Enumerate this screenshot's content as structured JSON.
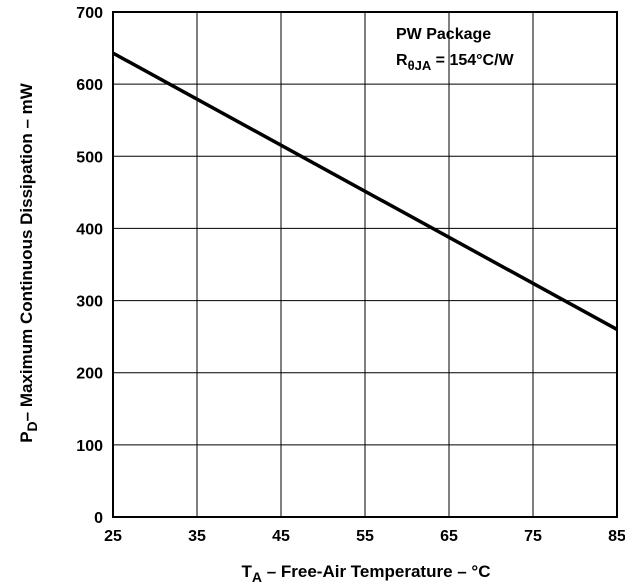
{
  "chart_data": {
    "type": "line",
    "title": "",
    "xlabel_main": "T",
    "xlabel_sub": "A",
    "xlabel_rest": " – Free-Air Temperature – °C",
    "ylabel_main": "P",
    "ylabel_sub": "D",
    "ylabel_rest": "– Maximum Continuous Dissipation – mW",
    "xlim": [
      25,
      85
    ],
    "ylim": [
      0,
      700
    ],
    "x_ticks": [
      25,
      35,
      45,
      55,
      65,
      75,
      85
    ],
    "y_ticks": [
      0,
      100,
      200,
      300,
      400,
      500,
      600,
      700
    ],
    "grid": true,
    "annotation": {
      "line1": "PW Package",
      "line2_main": "R",
      "line2_sub": "θJA",
      "line2_rest": " = 154°C/W"
    },
    "series": [
      {
        "x": [
          25,
          85
        ],
        "y": [
          643,
          260
        ]
      }
    ]
  },
  "colors": {
    "line": "#000000",
    "grid": "#000000",
    "background": "#ffffff"
  }
}
